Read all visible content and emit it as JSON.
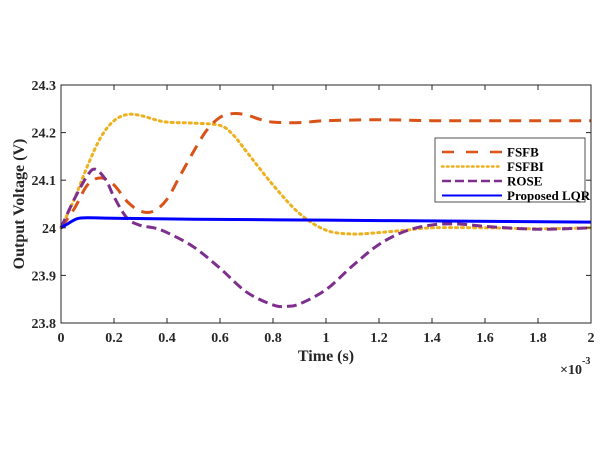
{
  "chart_data": {
    "type": "line",
    "title": "",
    "xlabel": "Time (s)",
    "ylabel": "Output Voltage (V)",
    "x_exponent_label": "×10",
    "x_exponent_power": "-3",
    "xlim": [
      0,
      2
    ],
    "ylim": [
      23.8,
      24.3
    ],
    "xticks": [
      0,
      0.2,
      0.4,
      0.6,
      0.8,
      1,
      1.2,
      1.4,
      1.6,
      1.8,
      2
    ],
    "xtick_labels": [
      "0",
      "0.2",
      "0.4",
      "0.6",
      "0.8",
      "1",
      "1.2",
      "1.4",
      "1.6",
      "1.8",
      "2"
    ],
    "yticks": [
      23.8,
      23.9,
      24,
      24.1,
      24.2,
      24.3
    ],
    "ytick_labels": [
      "23.8",
      "23.9",
      "24",
      "24.1",
      "24.2",
      "24.3"
    ],
    "grid": false,
    "legend_position": "right",
    "series": [
      {
        "name": "FSFB",
        "color": "#D95319",
        "style": "dashed",
        "x": [
          0,
          0.05,
          0.1,
          0.15,
          0.2,
          0.25,
          0.3,
          0.35,
          0.4,
          0.45,
          0.5,
          0.55,
          0.6,
          0.65,
          0.7,
          0.75,
          0.8,
          0.9,
          1.0,
          1.2,
          1.4,
          1.6,
          1.8,
          2.0
        ],
        "y": [
          24.0,
          24.04,
          24.09,
          24.105,
          24.09,
          24.055,
          24.035,
          24.035,
          24.06,
          24.11,
          24.16,
          24.205,
          24.232,
          24.24,
          24.237,
          24.228,
          24.222,
          24.221,
          24.225,
          24.227,
          24.225,
          24.225,
          24.225,
          24.225
        ]
      },
      {
        "name": "FSFBI",
        "color": "#EDB120",
        "style": "dotted",
        "x": [
          0,
          0.05,
          0.1,
          0.15,
          0.2,
          0.25,
          0.3,
          0.35,
          0.4,
          0.5,
          0.6,
          0.65,
          0.7,
          0.8,
          0.9,
          1.0,
          1.1,
          1.2,
          1.3,
          1.4,
          1.6,
          1.8,
          2.0
        ],
        "y": [
          24.0,
          24.06,
          24.13,
          24.19,
          24.225,
          24.238,
          24.236,
          24.228,
          24.222,
          24.22,
          24.215,
          24.195,
          24.16,
          24.09,
          24.03,
          23.995,
          23.987,
          23.99,
          23.995,
          24.0,
          24.0,
          23.998,
          24.0
        ]
      },
      {
        "name": "ROSE",
        "color": "#7E2F8E",
        "style": "dashdot",
        "x": [
          0,
          0.05,
          0.1,
          0.13,
          0.17,
          0.2,
          0.25,
          0.3,
          0.35,
          0.4,
          0.5,
          0.6,
          0.7,
          0.8,
          0.85,
          0.9,
          1.0,
          1.1,
          1.2,
          1.3,
          1.4,
          1.5,
          1.6,
          1.8,
          2.0
        ],
        "y": [
          24.0,
          24.06,
          24.11,
          24.123,
          24.1,
          24.065,
          24.02,
          24.005,
          24.0,
          23.99,
          23.96,
          23.915,
          23.865,
          23.838,
          23.835,
          23.84,
          23.87,
          23.92,
          23.965,
          23.993,
          24.006,
          24.008,
          24.003,
          23.997,
          24.0
        ]
      },
      {
        "name": "Proposed LQR",
        "color": "#0000FF",
        "style": "solid",
        "x": [
          0,
          0.03,
          0.06,
          0.1,
          0.2,
          0.5,
          1.0,
          1.5,
          2.0
        ],
        "y": [
          24.0,
          24.01,
          24.019,
          24.021,
          24.02,
          24.018,
          24.016,
          24.014,
          24.012
        ]
      }
    ]
  }
}
